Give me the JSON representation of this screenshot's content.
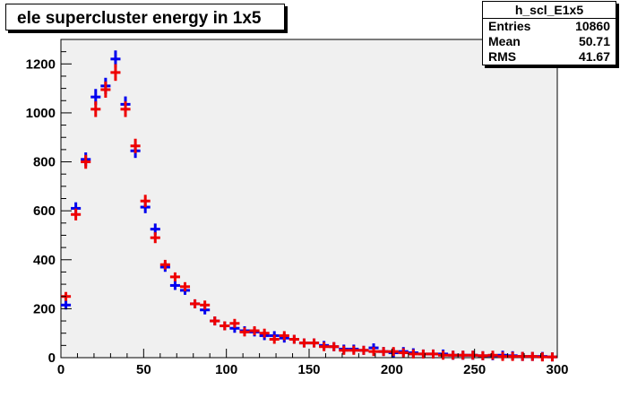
{
  "title": "ele supercluster energy in 1x5",
  "stats": {
    "name": "h_scl_E1x5",
    "rows": [
      {
        "label": "Entries",
        "value": "10860"
      },
      {
        "label": "Mean",
        "value": "50.71"
      },
      {
        "label": "RMS",
        "value": "41.67"
      }
    ]
  },
  "colors": {
    "frame_fill": "#f0f0f0",
    "series_blue": "#0000ee",
    "series_red": "#ee0000"
  },
  "chart_data": {
    "type": "scatter",
    "style": "histogram with error crosses",
    "xlim": [
      0,
      300
    ],
    "ylim": [
      0,
      1300
    ],
    "bin_width": 6,
    "xticks": [
      0,
      50,
      100,
      150,
      200,
      250,
      300
    ],
    "yticks": [
      0,
      200,
      400,
      600,
      800,
      1000,
      1200
    ],
    "grid": false,
    "series": [
      {
        "color": "#0000ee",
        "x": [
          3,
          9,
          15,
          21,
          27,
          33,
          39,
          45,
          51,
          57,
          63,
          69,
          75,
          81,
          87,
          93,
          99,
          105,
          111,
          117,
          123,
          129,
          135,
          141,
          147,
          153,
          159,
          165,
          171,
          177,
          183,
          189,
          195,
          201,
          207,
          213,
          219,
          225,
          231,
          237,
          243,
          249,
          255,
          261,
          267,
          273,
          279,
          285,
          291,
          297
        ],
        "y": [
          215,
          610,
          810,
          1065,
          1110,
          1220,
          1035,
          845,
          615,
          525,
          370,
          295,
          275,
          220,
          195,
          150,
          130,
          120,
          110,
          105,
          90,
          90,
          80,
          75,
          60,
          60,
          50,
          45,
          35,
          35,
          30,
          40,
          25,
          20,
          25,
          20,
          15,
          15,
          15,
          10,
          10,
          10,
          8,
          8,
          10,
          8,
          5,
          5,
          5,
          3
        ]
      },
      {
        "color": "#ee0000",
        "x": [
          3,
          9,
          15,
          21,
          27,
          33,
          39,
          45,
          51,
          57,
          63,
          69,
          75,
          81,
          87,
          93,
          99,
          105,
          111,
          117,
          123,
          129,
          135,
          141,
          147,
          153,
          159,
          165,
          171,
          177,
          183,
          189,
          195,
          201,
          207,
          213,
          219,
          225,
          231,
          237,
          243,
          249,
          255,
          261,
          267,
          273,
          279,
          285,
          291,
          297
        ],
        "y": [
          250,
          585,
          800,
          1015,
          1095,
          1165,
          1015,
          865,
          640,
          490,
          380,
          330,
          290,
          220,
          215,
          150,
          130,
          140,
          105,
          110,
          100,
          75,
          90,
          75,
          60,
          60,
          45,
          45,
          30,
          30,
          30,
          25,
          25,
          25,
          20,
          15,
          15,
          15,
          10,
          10,
          10,
          10,
          8,
          10,
          5,
          5,
          5,
          5,
          3,
          3
        ]
      }
    ]
  }
}
